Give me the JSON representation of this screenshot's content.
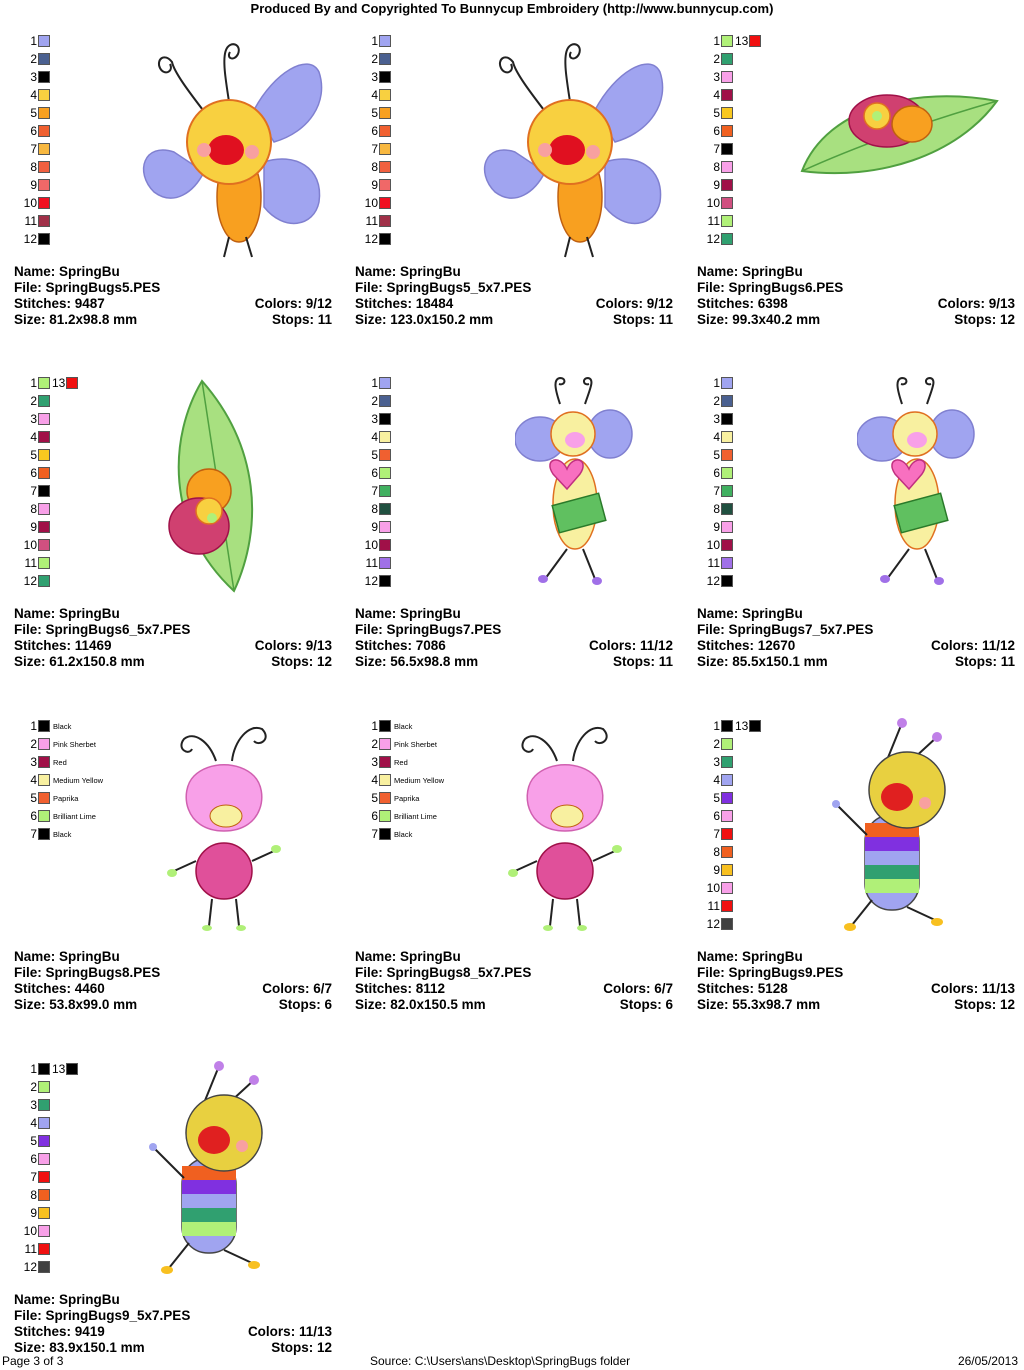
{
  "header": {
    "title": "Produced By and Copyrighted To Bunnycup Embroidery (http://www.bunnycup.com)"
  },
  "labels": {
    "name": "Name: ",
    "file": "File: ",
    "stitches": "Stitches: ",
    "size": "Size: ",
    "colors": "Colors: ",
    "stops": "Stops: "
  },
  "designs": [
    {
      "name": "SpringBu",
      "file": "SpringBugs5.PES",
      "stitches": "9487",
      "size": "81.2x98.8 mm",
      "colors": "9/12",
      "stops": "11",
      "palette": [
        "#a0a4f0",
        "#4a6090",
        "#000000",
        "#f8d040",
        "#f8a020",
        "#f06030",
        "#f8b840",
        "#f06040",
        "#f06868",
        "#f01020",
        "#a03048",
        "#000000"
      ],
      "extra": null,
      "names": null,
      "art": "butterfly"
    },
    {
      "name": "SpringBu",
      "file": "SpringBugs5_5x7.PES",
      "stitches": "18484",
      "size": "123.0x150.2 mm",
      "colors": "9/12",
      "stops": "11",
      "palette": [
        "#a0a4f0",
        "#4a6090",
        "#000000",
        "#f8d040",
        "#f8a020",
        "#f06030",
        "#f8b840",
        "#f06040",
        "#f06868",
        "#f01020",
        "#a03048",
        "#000000"
      ],
      "extra": null,
      "names": null,
      "art": "butterfly"
    },
    {
      "name": "SpringBu",
      "file": "SpringBugs6.PES",
      "stitches": "6398",
      "size": "99.3x40.2 mm",
      "colors": "9/13",
      "stops": "12",
      "palette": [
        "#b0f078",
        "#30a070",
        "#f8a0e8",
        "#a01048",
        "#f8c820",
        "#f06020",
        "#000000",
        "#f8a0e8",
        "#a01048",
        "#d05080",
        "#b0f078",
        "#30a070"
      ],
      "extra": {
        "num": "13",
        "color": "#f01010"
      },
      "names": null,
      "art": "leaf-h"
    },
    {
      "name": "SpringBu",
      "file": "SpringBugs6_5x7.PES",
      "stitches": "11469",
      "size": "61.2x150.8 mm",
      "colors": "9/13",
      "stops": "12",
      "palette": [
        "#b0f078",
        "#30a070",
        "#f8a0e8",
        "#a01048",
        "#f8c820",
        "#f06020",
        "#000000",
        "#f8a0e8",
        "#a01048",
        "#d05080",
        "#b0f078",
        "#30a070"
      ],
      "extra": {
        "num": "13",
        "color": "#f01010"
      },
      "names": null,
      "art": "leaf-v"
    },
    {
      "name": "SpringBu",
      "file": "SpringBugs7.PES",
      "stitches": "7086",
      "size": "56.5x98.8 mm",
      "colors": "11/12",
      "stops": "11",
      "palette": [
        "#a0a4f0",
        "#4a6090",
        "#000000",
        "#f8f0a0",
        "#f06030",
        "#b0f078",
        "#40b060",
        "#205040",
        "#f8a0e8",
        "#a01048",
        "#a070e8",
        "#000000"
      ],
      "extra": null,
      "names": null,
      "art": "heart-bug"
    },
    {
      "name": "SpringBu",
      "file": "SpringBugs7_5x7.PES",
      "stitches": "12670",
      "size": "85.5x150.1 mm",
      "colors": "11/12",
      "stops": "11",
      "palette": [
        "#a0a4f0",
        "#4a6090",
        "#000000",
        "#f8f0a0",
        "#f06030",
        "#b0f078",
        "#40b060",
        "#205040",
        "#f8a0e8",
        "#a01048",
        "#a070e8",
        "#000000"
      ],
      "extra": null,
      "names": null,
      "art": "heart-bug"
    },
    {
      "name": "SpringBu",
      "file": "SpringBugs8.PES",
      "stitches": "4460",
      "size": "53.8x99.0 mm",
      "colors": "6/7",
      "stops": "6",
      "palette": [
        "#000000",
        "#f8a0e8",
        "#a01048",
        "#f8f0a0",
        "#f06030",
        "#b0f078",
        "#000000"
      ],
      "extra": null,
      "names": [
        "Black",
        "Pink Sherbet",
        "Red",
        "Medium Yellow",
        "Paprika",
        "Brilliant Lime",
        "Black"
      ],
      "art": "pink-bug"
    },
    {
      "name": "SpringBu",
      "file": "SpringBugs8_5x7.PES",
      "stitches": "8112",
      "size": "82.0x150.5 mm",
      "colors": "6/7",
      "stops": "6",
      "palette": [
        "#000000",
        "#f8a0e8",
        "#a01048",
        "#f8f0a0",
        "#f06030",
        "#b0f078",
        "#000000"
      ],
      "extra": null,
      "names": [
        "Black",
        "Pink Sherbet",
        "Red",
        "Medium Yellow",
        "Paprika",
        "Brilliant Lime",
        "Black"
      ],
      "art": "pink-bug"
    },
    {
      "name": "SpringBu",
      "file": "SpringBugs9.PES",
      "stitches": "5128",
      "size": "55.3x98.7 mm",
      "colors": "11/13",
      "stops": "12",
      "palette": [
        "#000000",
        "#b0f078",
        "#30a070",
        "#a0a4f0",
        "#8030e0",
        "#f8a0e8",
        "#f01010",
        "#f06020",
        "#f8c020",
        "#f8a0e8",
        "#f01010",
        "#404040"
      ],
      "extra": {
        "num": "13",
        "color": "#000000"
      },
      "names": null,
      "art": "rainbow-bug"
    },
    {
      "name": "SpringBu",
      "file": "SpringBugs9_5x7.PES",
      "stitches": "9419",
      "size": "83.9x150.1 mm",
      "colors": "11/13",
      "stops": "12",
      "palette": [
        "#000000",
        "#b0f078",
        "#30a070",
        "#a0a4f0",
        "#8030e0",
        "#f8a0e8",
        "#f01010",
        "#f06020",
        "#f8c020",
        "#f8a0e8",
        "#f01010",
        "#404040"
      ],
      "extra": {
        "num": "13",
        "color": "#000000"
      },
      "names": null,
      "art": "rainbow-bug"
    }
  ],
  "footer": {
    "page": "Page 3 of 3",
    "source": "Source: C:\\Users\\ans\\Desktop\\SpringBugs folder",
    "date": "26/05/2013"
  }
}
